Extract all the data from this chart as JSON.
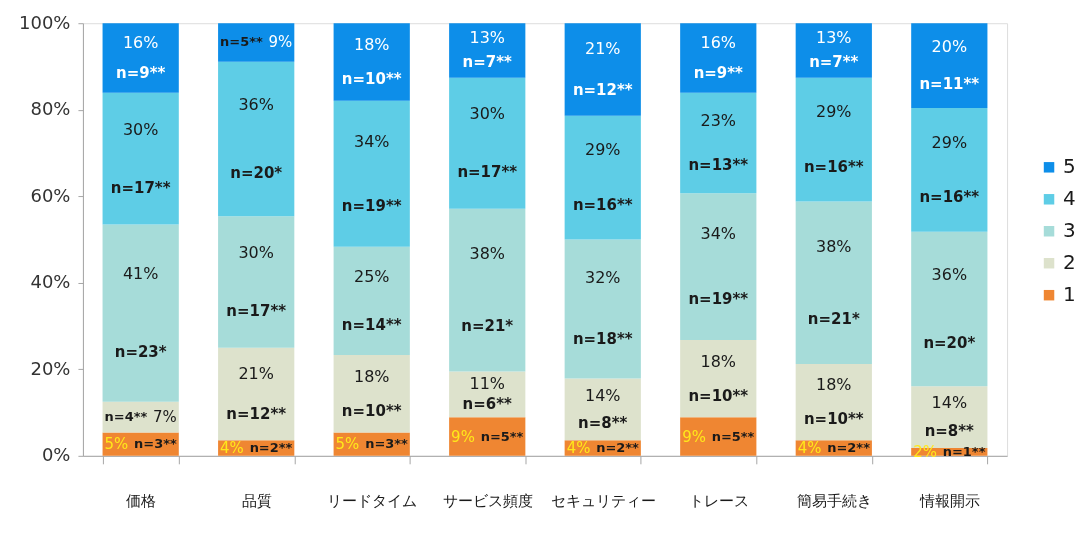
{
  "chart_data": {
    "type": "bar",
    "stacked": true,
    "legend": "right",
    "grid": false,
    "categories": [
      "価格",
      "品質",
      "リードタイム",
      "サービス頻度",
      "セキュリティー",
      "トレース",
      "簡易手続き",
      "情報開示"
    ],
    "ylim": [
      0,
      100
    ],
    "yticks": [
      {
        "value": 0,
        "label": "0%"
      },
      {
        "value": 20,
        "label": "20%"
      },
      {
        "value": 40,
        "label": "40%"
      },
      {
        "value": 60,
        "label": "60%"
      },
      {
        "value": 80,
        "label": "80%"
      },
      {
        "value": 100,
        "label": "100%"
      }
    ],
    "series": [
      {
        "name": "1",
        "color": "#ef8632",
        "values": [
          5.4,
          3.6,
          5.4,
          8.9,
          3.6,
          8.9,
          3.6,
          1.8
        ],
        "value_labels": [
          "5%",
          "4%",
          "5%",
          "9%",
          "4%",
          "9%",
          "4%",
          "2%"
        ]
      },
      {
        "name": "2",
        "color": "#dde2cc",
        "values": [
          7.1,
          21.4,
          17.9,
          10.6,
          14.3,
          17.9,
          17.6,
          14.3
        ],
        "value_labels": [
          "7%",
          "21%",
          "18%",
          "11%",
          "14%",
          "18%",
          "18%",
          "14%"
        ]
      },
      {
        "name": "3",
        "color": "#a6dcd9",
        "values": [
          41.0,
          30.4,
          25.0,
          37.6,
          32.1,
          33.9,
          37.6,
          35.7
        ],
        "value_labels": [
          "41%",
          "30%",
          "25%",
          "38%",
          "32%",
          "34%",
          "38%",
          "36%"
        ]
      },
      {
        "name": "4",
        "color": "#5ecde6",
        "values": [
          30.4,
          35.7,
          33.8,
          30.3,
          28.6,
          23.2,
          28.6,
          28.6
        ],
        "value_labels": [
          "30%",
          "36%",
          "34%",
          "30%",
          "29%",
          "23%",
          "29%",
          "29%"
        ]
      },
      {
        "name": "5",
        "color": "#0d8ee9",
        "values": [
          16.1,
          8.9,
          17.9,
          12.6,
          21.4,
          16.1,
          12.6,
          19.6
        ],
        "value_labels": [
          "16%",
          "9%",
          "18%",
          "13%",
          "21%",
          "16%",
          "13%",
          "20%"
        ]
      }
    ],
    "annotations": [
      "n=3**",
      "n=4**",
      "n=23*",
      "n=17**",
      "n=9**",
      "n=2**",
      "n=12**",
      "n=17**",
      "n=20*",
      "n=5**",
      "n=3**",
      "n=10**",
      "n=14**",
      "n=19**",
      "n=10**",
      "n=5**",
      "n=6**",
      "n=21*",
      "n=17**",
      "n=7**",
      "n=2**",
      "n=8**",
      "n=18**",
      "n=16**",
      "n=12**",
      "n=5**",
      "n=10**",
      "n=19**",
      "n=13**",
      "n=9**",
      "n=2**",
      "n=10**",
      "n=21*",
      "n=16**",
      "n=7**",
      "n=1**",
      "n=8**",
      "n=20*",
      "n=16**",
      "n=11**"
    ]
  }
}
